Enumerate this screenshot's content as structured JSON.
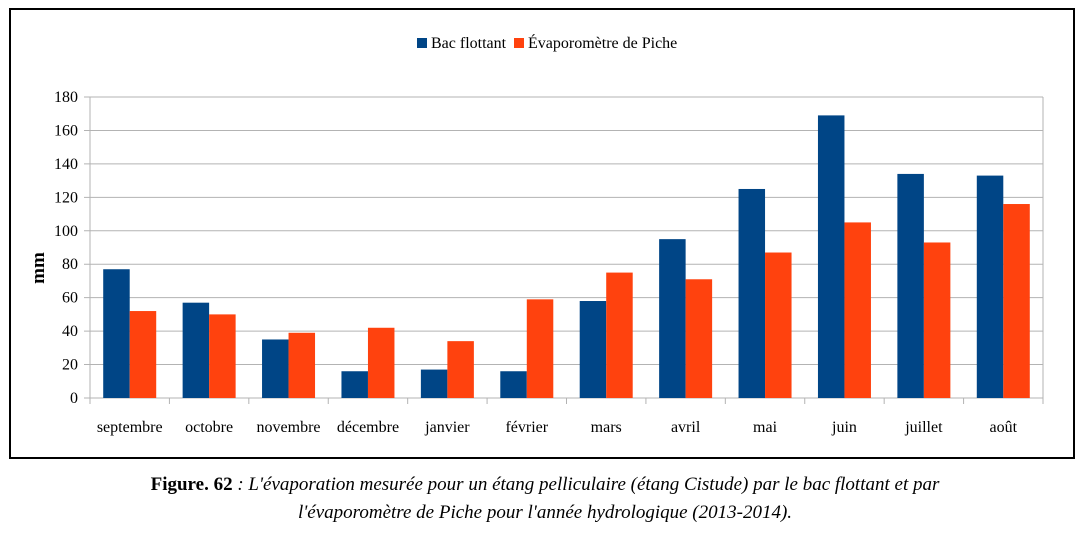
{
  "chart_data": {
    "type": "bar",
    "categories": [
      "septembre",
      "octobre",
      "novembre",
      "décembre",
      "janvier",
      "février",
      "mars",
      "avril",
      "mai",
      "juin",
      "juillet",
      "août"
    ],
    "series": [
      {
        "name": "Bac flottant",
        "color": "#004586",
        "values": [
          77,
          57,
          35,
          16,
          17,
          16,
          58,
          95,
          125,
          169,
          134,
          133
        ]
      },
      {
        "name": "Évaporomètre de Piche",
        "color": "#ff420e",
        "values": [
          52,
          50,
          39,
          42,
          34,
          59,
          75,
          71,
          87,
          105,
          93,
          116
        ]
      }
    ],
    "ylabel": "mm",
    "xlabel": "",
    "ylim": [
      0,
      180
    ],
    "yticks": [
      0,
      20,
      40,
      60,
      80,
      100,
      120,
      140,
      160,
      180
    ],
    "grid": true,
    "legend_position": "top-center"
  },
  "caption": {
    "label": "Figure. 62",
    "line1": " : L'évaporation mesurée pour un étang pelliculaire (étang Cistude) par le bac flottant et par",
    "line2": "l'évaporomètre de Piche pour l'année hydrologique (2013-2014)."
  }
}
